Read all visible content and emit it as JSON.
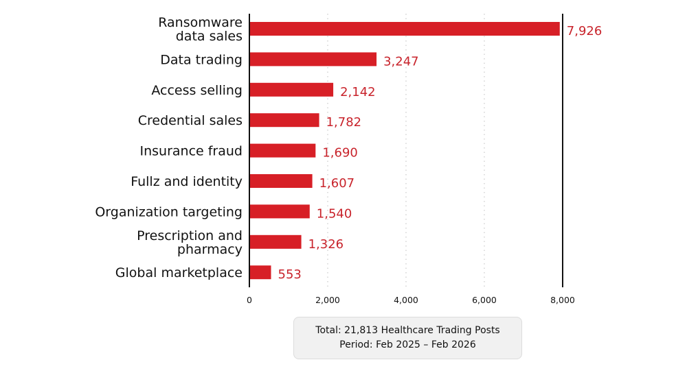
{
  "chart_data": {
    "type": "bar",
    "orientation": "horizontal",
    "categories": [
      [
        "Ransomware",
        "data sales"
      ],
      [
        "Data trading"
      ],
      [
        "Access selling"
      ],
      [
        "Credential sales"
      ],
      [
        "Insurance fraud"
      ],
      [
        "Fullz and identity"
      ],
      [
        "Organization targeting"
      ],
      [
        "Prescription and",
        "pharmacy"
      ],
      [
        "Global marketplace"
      ]
    ],
    "values": [
      7926,
      3247,
      2142,
      1782,
      1690,
      1607,
      1540,
      1326,
      553
    ],
    "value_labels": [
      "7,926",
      "3,247",
      "2,142",
      "1,782",
      "1,690",
      "1,607",
      "1,540",
      "1,326",
      "553"
    ],
    "xticks": [
      0,
      2000,
      4000,
      6000,
      8000
    ],
    "xtick_labels": [
      "0",
      "2,000",
      "4,000",
      "6,000",
      "8,000"
    ],
    "xlim": [
      0,
      8000
    ],
    "title": "",
    "xlabel": "",
    "ylabel": "",
    "grid": "vertical dotted",
    "bar_color": "#d71f26",
    "label_color": "#c8232b",
    "text_color": "#111111"
  },
  "summary": {
    "line1": "Total: 21,813 Healthcare Trading Posts",
    "line2": "Period: Feb 2025 – Feb 2026"
  }
}
